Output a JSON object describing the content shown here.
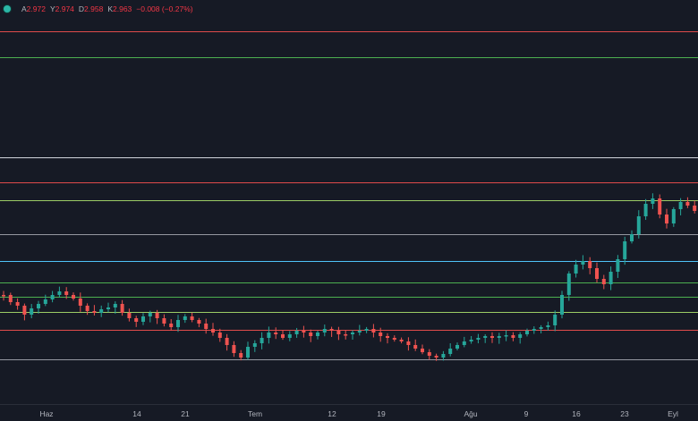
{
  "legend": {
    "open_key": "A",
    "open_value": "2.972",
    "high_key": "Y",
    "high_value": "2.974",
    "low_key": "D",
    "low_value": "2.958",
    "close_key": "K",
    "close_value": "2.963",
    "change": "−0.008 (−0.27%)"
  },
  "time_axis": {
    "labels": [
      "Haz",
      "14",
      "21",
      "Tem",
      "12",
      "19",
      "Ağu",
      "9",
      "16",
      "23",
      "Eyl"
    ]
  },
  "colors": {
    "background": "#161a25",
    "up_candle": "#26a69a",
    "down_candle": "#ef5350",
    "level_red": "#e04b4b",
    "level_green": "#4caf50",
    "level_white": "#d1d4dc",
    "level_gray": "#9598a1",
    "level_blue": "#2962ff",
    "level_teal": "#4fc3f7",
    "level_yellowgreen": "#9ccc65"
  },
  "horizontal_levels": [
    {
      "color": "level_red"
    },
    {
      "color": "level_green"
    },
    {
      "color": "level_white"
    },
    {
      "color": "level_red"
    },
    {
      "color": "level_yellowgreen"
    },
    {
      "color": "level_gray"
    },
    {
      "color": "level_teal"
    },
    {
      "color": "level_green"
    },
    {
      "color": "level_green"
    },
    {
      "color": "level_yellowgreen"
    },
    {
      "color": "level_red"
    },
    {
      "color": "level_gray"
    }
  ],
  "price_path": [
    330,
    338,
    342,
    352,
    345,
    340,
    335,
    330,
    326,
    330,
    334,
    342,
    348,
    350,
    346,
    344,
    340,
    350,
    356,
    360,
    354,
    350,
    356,
    362,
    366,
    358,
    354,
    358,
    362,
    368,
    372,
    378,
    386,
    395,
    400,
    388,
    384,
    378,
    372,
    374,
    378,
    374,
    370,
    372,
    376,
    372,
    368,
    370,
    374,
    374,
    372,
    370,
    368,
    372,
    376,
    378,
    380,
    382,
    386,
    390,
    394,
    398,
    400,
    396,
    390,
    386,
    382,
    380,
    378,
    376,
    378,
    376,
    375,
    378,
    374,
    370,
    368,
    366,
    364,
    352,
    330,
    306,
    296,
    292,
    300,
    312,
    318,
    304,
    290,
    270,
    262,
    242,
    228,
    222,
    240,
    250,
    234,
    226,
    230,
    236
  ]
}
